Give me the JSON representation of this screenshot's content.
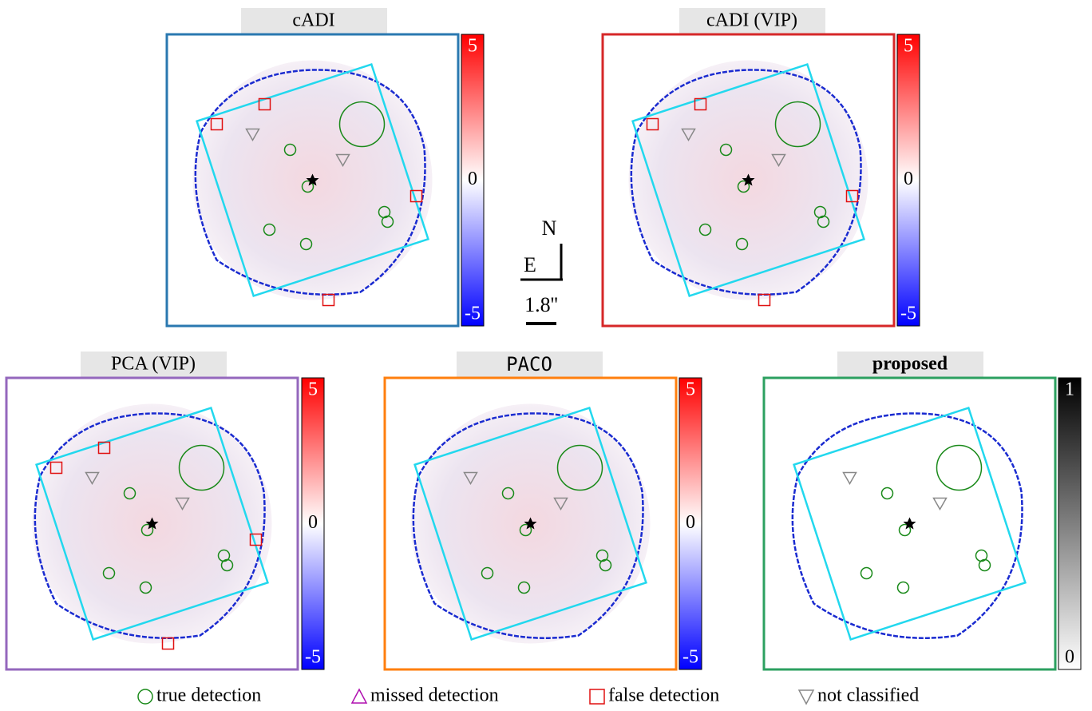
{
  "panels": [
    {
      "title": "cADI",
      "colorbar": {
        "top": "5",
        "middle": "0",
        "bottom": "-5"
      }
    },
    {
      "title": "cADI (VIP)",
      "colorbar": {
        "top": "5",
        "middle": "0",
        "bottom": "-5"
      }
    },
    {
      "title": "PCA (VIP)",
      "colorbar": {
        "top": "5",
        "middle": "0",
        "bottom": "-5"
      }
    },
    {
      "title": "PACO",
      "colorbar": {
        "top": "5",
        "middle": "0",
        "bottom": "-5"
      }
    },
    {
      "title": "proposed",
      "colorbar": {
        "top": "1",
        "middle": "",
        "bottom": "0"
      }
    }
  ],
  "compass": {
    "north": "N",
    "east": "E",
    "scale": "1.8''"
  },
  "legend": [
    "true detection",
    "missed detection",
    "false detection",
    "not classified"
  ]
}
